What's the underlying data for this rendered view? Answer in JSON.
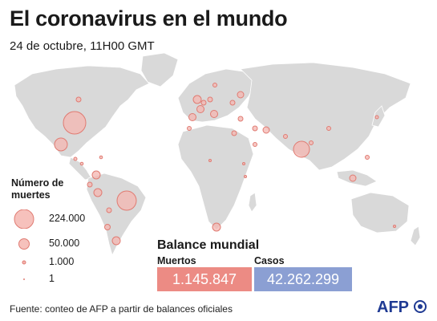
{
  "title": "El coronavirus en el mundo",
  "subtitle": "24 de octubre, 11H00 GMT",
  "legend": {
    "title": "Número de muertes",
    "items": [
      {
        "label": "224.000",
        "value": 224000
      },
      {
        "label": "50.000",
        "value": 50000
      },
      {
        "label": "1.000",
        "value": 1000
      },
      {
        "label": "1",
        "value": 1
      }
    ]
  },
  "balance": {
    "title": "Balance mundial",
    "deaths_label": "Muertos",
    "deaths_value": "1.145.847",
    "cases_label": "Casos",
    "cases_value": "42.262.299"
  },
  "source": "Fuente: conteo de AFP a partir de balances oficiales",
  "logo": "AFP",
  "colors": {
    "land": "#d9d9d9",
    "bubble_fill": "#f4b6b0",
    "bubble_stroke": "#e07b72",
    "deaths_box": "#ec8b84",
    "cases_box": "#8b9fd3"
  }
}
